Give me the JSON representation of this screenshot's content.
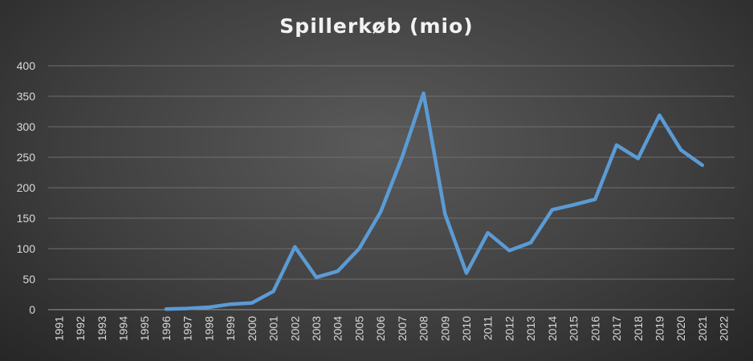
{
  "chart_data": {
    "type": "line",
    "title": "Spillerkøb (mio)",
    "xlabel": "",
    "ylabel": "",
    "ylim": [
      0,
      400
    ],
    "yticks": [
      "0",
      "50",
      "100",
      "150",
      "200",
      "250",
      "300",
      "350",
      "400"
    ],
    "categories": [
      "1991",
      "1992",
      "1993",
      "1994",
      "1995",
      "1996",
      "1997",
      "1998",
      "1999",
      "2000",
      "2001",
      "2002",
      "2003",
      "2004",
      "2005",
      "2006",
      "2007",
      "2008",
      "2009",
      "2010",
      "2011",
      "2012",
      "2013",
      "2014",
      "2015",
      "2016",
      "2017",
      "2018",
      "2019",
      "2020",
      "2021",
      "2022"
    ],
    "series": [
      {
        "color": "#5b9bd5",
        "values": [
          null,
          null,
          null,
          null,
          null,
          1,
          2,
          4,
          9,
          11,
          30,
          103,
          53,
          63,
          100,
          160,
          250,
          355,
          157,
          60,
          126,
          97,
          110,
          164,
          172,
          181,
          270,
          248,
          319,
          262,
          237,
          null
        ]
      }
    ],
    "grid": true,
    "legend": "none"
  }
}
